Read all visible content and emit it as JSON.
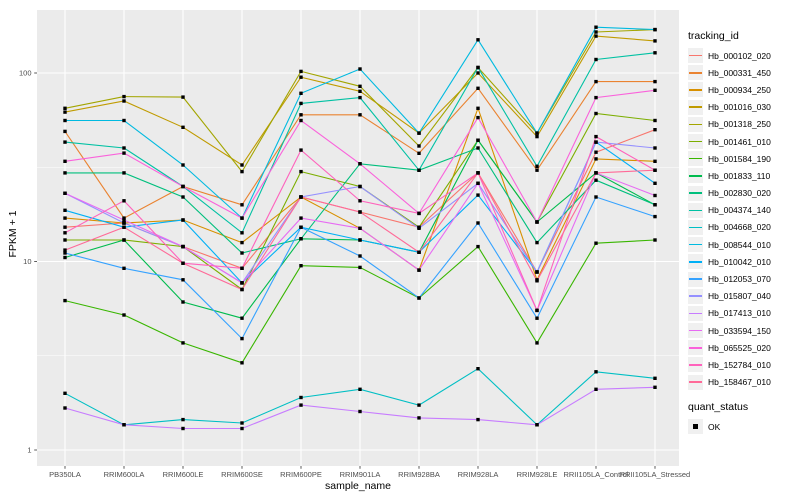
{
  "figure": {
    "background": "#FFFFFF",
    "panel_background": "#EBEBEB",
    "grid_color": "#FFFFFF",
    "tick_color": "#333333",
    "tick_text_color": "#4D4D4D",
    "point_color": "#000000"
  },
  "chart_data": {
    "type": "line",
    "title": "",
    "xlabel": "sample_name",
    "ylabel": "FPKM + 1",
    "y_scale": "log10",
    "y_ticks": [
      1,
      10,
      100
    ],
    "y_minor_ticks": [
      3.162,
      31.62
    ],
    "ylim": [
      0.85,
      216
    ],
    "legend_position": "right",
    "grid": true,
    "point_shape": "square",
    "categories": [
      "PB350LA",
      "RRIM600LA",
      "RRIM600LE",
      "RRIM600SE",
      "RRIM600PE",
      "RRIM901LA",
      "RRIM928BA",
      "RRIM928LA",
      "RRIM928LE",
      "RRII105LA_Control",
      "RRII105LA_Stressed"
    ],
    "series": [
      {
        "name": "Hb_000102_020",
        "color": "#F8766D",
        "values": [
          15.2,
          16,
          12,
          9.2,
          22,
          18.3,
          15.2,
          29.5,
          8.8,
          38,
          50
        ]
      },
      {
        "name": "Hb_000331_450",
        "color": "#EA8331",
        "values": [
          49,
          17,
          25,
          20,
          60,
          60,
          37.5,
          83,
          30.5,
          90,
          90
        ]
      },
      {
        "name": "Hb_000934_250",
        "color": "#D89000",
        "values": [
          17,
          16,
          16.6,
          12.6,
          22,
          15,
          9,
          65,
          8,
          35,
          34
        ]
      },
      {
        "name": "Hb_001016_030",
        "color": "#C09B00",
        "values": [
          62,
          71,
          51.5,
          32.5,
          95,
          80,
          48,
          100,
          46,
          157,
          148
        ]
      },
      {
        "name": "Hb_001318_250",
        "color": "#A3A500",
        "values": [
          65,
          75,
          74.5,
          30,
          102,
          85,
          41,
          107,
          48,
          165,
          170
        ]
      },
      {
        "name": "Hb_001461_010",
        "color": "#7CAE00",
        "values": [
          13,
          13,
          12,
          7.1,
          30,
          25,
          15.2,
          44,
          16.2,
          61,
          56
        ]
      },
      {
        "name": "Hb_001584_190",
        "color": "#39B600",
        "values": [
          6.2,
          5.2,
          3.7,
          2.9,
          9.5,
          9.3,
          6.4,
          12,
          3.7,
          12.5,
          13
        ]
      },
      {
        "name": "Hb_001833_110",
        "color": "#00BB4E",
        "values": [
          10.5,
          13,
          6.1,
          5,
          13.2,
          13,
          11.2,
          44,
          16.2,
          29.5,
          20
        ]
      },
      {
        "name": "Hb_002830_020",
        "color": "#00BF7D",
        "values": [
          29.5,
          29.5,
          22,
          11.1,
          13.2,
          33,
          30.5,
          40,
          12.6,
          27,
          20
        ]
      },
      {
        "name": "Hb_004374_140",
        "color": "#00C1A3",
        "values": [
          43,
          40,
          25,
          14.2,
          69,
          74,
          30.5,
          107,
          32,
          118,
          128
        ]
      },
      {
        "name": "Hb_004668_020",
        "color": "#00BFC4",
        "values": [
          2,
          1.36,
          1.45,
          1.39,
          1.9,
          2.1,
          1.73,
          2.7,
          1.36,
          2.6,
          2.4
        ]
      },
      {
        "name": "Hb_008544_010",
        "color": "#00BAE0",
        "values": [
          56,
          56,
          32.5,
          17,
          78,
          105,
          48,
          150,
          48,
          175,
          170
        ]
      },
      {
        "name": "Hb_010042_010",
        "color": "#00B0F6",
        "values": [
          18.7,
          15.2,
          16.6,
          7.7,
          15.2,
          13,
          11.2,
          22.5,
          8.8,
          43,
          26
        ]
      },
      {
        "name": "Hb_012053_070",
        "color": "#35A2FF",
        "values": [
          11.1,
          9.2,
          8,
          3.9,
          15.2,
          10.7,
          6.4,
          16,
          5,
          22,
          17.3
        ]
      },
      {
        "name": "Hb_015807_040",
        "color": "#9590FF",
        "values": [
          23,
          16,
          12,
          7.7,
          22,
          25,
          15,
          26,
          8.8,
          43,
          40
        ]
      },
      {
        "name": "Hb_017413_010",
        "color": "#C77CFF",
        "values": [
          1.67,
          1.36,
          1.3,
          1.3,
          1.73,
          1.6,
          1.48,
          1.45,
          1.36,
          2.1,
          2.15
        ]
      },
      {
        "name": "Hb_033594_150",
        "color": "#E76BF3",
        "values": [
          23,
          16.6,
          12,
          7.7,
          17,
          15,
          9,
          26,
          5.5,
          29.5,
          22.4
        ]
      },
      {
        "name": "Hb_065525_020",
        "color": "#FA62DB",
        "values": [
          34,
          37.6,
          25,
          17,
          56,
          33,
          18,
          58,
          16.2,
          74,
          81
        ]
      },
      {
        "name": "Hb_152784_010",
        "color": "#FF62BC",
        "values": [
          14.2,
          21,
          9.8,
          9.2,
          39,
          21,
          18,
          29.5,
          5.5,
          46,
          30.5
        ]
      },
      {
        "name": "Hb_158467_010",
        "color": "#FF6A98",
        "values": [
          11.5,
          15.2,
          9.8,
          7.1,
          22,
          18.3,
          11.2,
          29.5,
          7.9,
          29.5,
          30.5
        ]
      }
    ]
  },
  "legend": {
    "title": "tracking_id"
  },
  "legend2": {
    "title": "quant_status",
    "entries": [
      {
        "label": "OK",
        "marker": "black-square-icon"
      }
    ]
  }
}
